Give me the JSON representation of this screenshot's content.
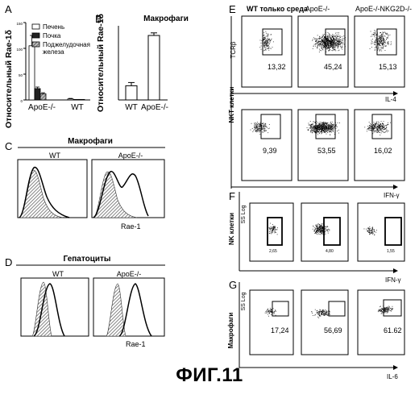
{
  "figure_caption": "ФИГ.11",
  "panels": {
    "A": {
      "letter": "A",
      "ylabel": "Относительный Rae-1δ",
      "yticks": [
        "150",
        "100",
        "50",
        "0"
      ],
      "legend": [
        "Печень",
        "Почка",
        "Поджелудочная железа"
      ]
    },
    "B": {
      "letter": "B",
      "title": "Макрофаги",
      "ylabel": "Относительный Rae-1δ"
    },
    "C": {
      "letter": "C",
      "title": "Макрофаги",
      "sub": [
        "WT",
        "ApoE-/-"
      ],
      "xlabel": "Rae-1"
    },
    "D": {
      "letter": "D",
      "title": "Гепатоциты",
      "sub": [
        "WT",
        "ApoE-/-"
      ],
      "xlabel": "Rae-1"
    },
    "E": {
      "letter": "E",
      "cols": [
        "WT только среда",
        "ApoE-/-",
        "ApoE-/-NKG2D-/-"
      ],
      "row_title": "NKT клетки",
      "ylabel_top": "TCRβ",
      "xlabel_top": "IL-4",
      "xlabel_bottom": "IFN-γ",
      "values_top": [
        "13,32",
        "45,24",
        "15,13"
      ],
      "values_bottom": [
        "9,39",
        "53,55",
        "16,02"
      ]
    },
    "F": {
      "letter": "F",
      "row_title": "NK клетки",
      "ylabel": "SS Log",
      "xlabel": "IFN-γ",
      "values": [
        "2,65",
        "4,80",
        "1,55"
      ]
    },
    "G": {
      "letter": "G",
      "row_title": "Макрофаги",
      "ylabel": "SS Log",
      "xlabel": "IL-6",
      "values": [
        "17,24",
        "56,69",
        "61.62"
      ]
    }
  },
  "chart_data": [
    {
      "type": "bar",
      "panel": "A",
      "categories": [
        "ApoE-/-",
        "WT"
      ],
      "series": [
        {
          "name": "Печень",
          "values": [
            105,
            2
          ]
        },
        {
          "name": "Почка",
          "values": [
            22,
            1
          ]
        },
        {
          "name": "Поджелудочная железа",
          "values": [
            12,
            1
          ]
        }
      ],
      "errors": [
        [
          20,
          1
        ],
        [
          3,
          0.5
        ],
        [
          2,
          0.5
        ]
      ],
      "ylim": [
        0,
        150
      ],
      "ylabel": "Относительный Rae-1δ",
      "colors": [
        "#ffffff",
        "#222222",
        "#888888"
      ]
    },
    {
      "type": "bar",
      "panel": "B",
      "title": "Макрофаги",
      "categories": [
        "WT",
        "ApoE-/-"
      ],
      "values": [
        0.22,
        1.0
      ],
      "errors": [
        0.05,
        0.04
      ],
      "ylim": [
        0,
        1.15
      ],
      "ylabel": "Относительный Rae-1δ"
    },
    {
      "type": "table",
      "panel": "E-G",
      "columns": [
        "WT только среда",
        "ApoE-/-",
        "ApoE-/-NKG2D-/-"
      ],
      "rows": [
        {
          "name": "IL-4",
          "values": [
            "13,32",
            "45,24",
            "15,13"
          ]
        },
        {
          "name": "IFN-γ",
          "values": [
            "9,39",
            "53,55",
            "16,02"
          ]
        },
        {
          "name": "IFN-γ",
          "values": [
            "2,65",
            "4,80",
            "1,55"
          ]
        },
        {
          "name": "IL-6",
          "values": [
            "17,24",
            "56,69",
            "61.62"
          ]
        }
      ]
    }
  ]
}
